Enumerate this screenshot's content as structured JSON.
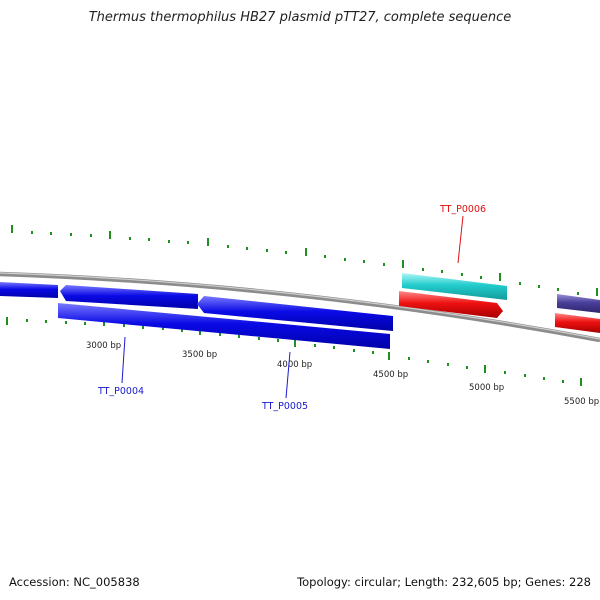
{
  "title": "Thermus thermophilus HB27 plasmid pTT27, complete sequence",
  "footer": {
    "accession": "Accession: NC_005838",
    "topology": "Topology: circular; Length: 232,605 bp; Genes: 228"
  },
  "colors": {
    "backbone": "#8c8c8c",
    "tick": "#1f8f1f",
    "forward_gene": "#0a0ae6",
    "cyan_feature": "#22cccc",
    "red_feature": "#ee1111",
    "purple_feature": "#4a3f9a",
    "label_blue": "#1a1ad0",
    "label_red": "#dd1111"
  },
  "position_labels": [
    "3000 bp",
    "3500 bp",
    "4000 bp",
    "4500 bp",
    "5000 bp",
    "5500 bp"
  ],
  "gene_labels": [
    "TT_P0004",
    "TT_P0005",
    "TT_P0006"
  ]
}
